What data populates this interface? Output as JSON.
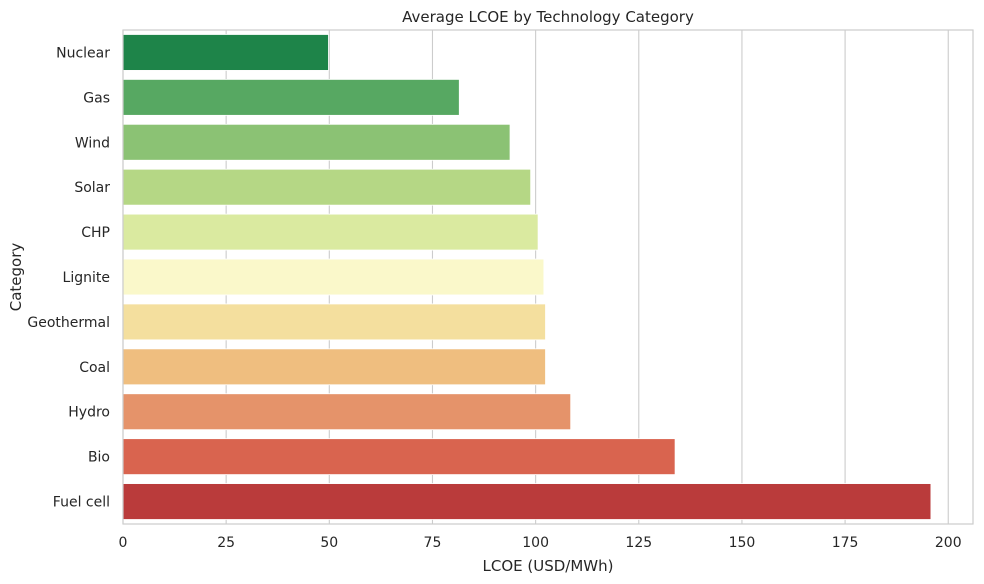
{
  "chart_data": {
    "type": "bar",
    "orientation": "horizontal",
    "title": "Average LCOE by Technology Category",
    "xlabel": "LCOE (USD/MWh)",
    "ylabel": "Category",
    "xlim": [
      0,
      206
    ],
    "xticks": [
      0,
      25,
      50,
      75,
      100,
      125,
      150,
      175,
      200
    ],
    "grid": "vertical",
    "categories": [
      "Nuclear",
      "Gas",
      "Wind",
      "Solar",
      "CHP",
      "Lignite",
      "Geothermal",
      "Coal",
      "Hydro",
      "Bio",
      "Fuel cell"
    ],
    "values": [
      49.8,
      81.5,
      93.8,
      98.8,
      100.6,
      102.0,
      102.4,
      102.4,
      108.5,
      133.8,
      195.8
    ],
    "colors": [
      "#1e8449",
      "#57a862",
      "#8bc274",
      "#b5d785",
      "#daeaa0",
      "#faf8ca",
      "#f4df9e",
      "#efbe7f",
      "#e5936a",
      "#d9644f",
      "#ba3b3b"
    ]
  }
}
